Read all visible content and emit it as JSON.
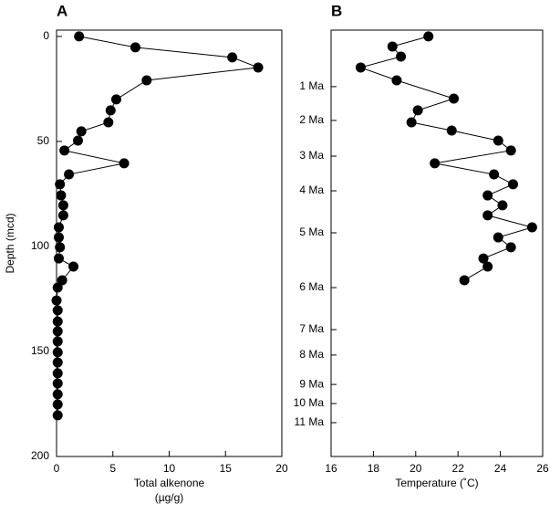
{
  "chart_data": [
    {
      "type": "line",
      "title": "A",
      "xlabel": [
        "Total alkenone",
        "(µg/g)"
      ],
      "ylabel": "Depth (mcd)",
      "color": "#000000",
      "xlim": [
        0,
        20
      ],
      "xticks": [
        0,
        5,
        10,
        15,
        20
      ],
      "ylim": [
        -3,
        200
      ],
      "yticks": [
        0,
        50,
        100,
        150,
        200
      ],
      "y_inverted": true,
      "y": [
        0,
        5.2,
        10,
        14.8,
        20.9,
        30,
        35.2,
        40.9,
        45.2,
        49.6,
        54.3,
        60.4,
        65.7,
        70.4,
        75.7,
        80.4,
        85.2,
        90.9,
        95.7,
        100.4,
        105.7,
        109.6,
        116.1,
        119.6,
        125.7,
        130.4,
        135.7,
        140.4,
        145.2,
        150.4,
        155.2,
        160.4,
        165.2,
        170.4,
        175.2,
        180.4
      ],
      "values": [
        2.0,
        7.0,
        15.6,
        17.9,
        8.0,
        5.3,
        4.8,
        4.6,
        2.2,
        1.9,
        0.7,
        6.0,
        1.1,
        0.3,
        0.4,
        0.6,
        0.6,
        0.2,
        0.2,
        0.3,
        0.2,
        1.5,
        0.5,
        0.1,
        0.0,
        0.1,
        0.1,
        0.1,
        0.1,
        0.1,
        0.1,
        0.1,
        0.1,
        0.1,
        0.1,
        0.1
      ]
    },
    {
      "type": "line",
      "title": "B",
      "xlabel": [
        "Temperature (˚C)"
      ],
      "color": "#000000",
      "xlim": [
        16,
        26
      ],
      "xticks": [
        16,
        18,
        20,
        22,
        24,
        26
      ],
      "ylim": [
        -3,
        200
      ],
      "y_inverted": true,
      "yticks": [
        {
          "value": 23.9,
          "label": "1 Ma"
        },
        {
          "value": 40,
          "label": "2 Ma"
        },
        {
          "value": 57,
          "label": "3 Ma"
        },
        {
          "value": 73.5,
          "label": "4 Ma"
        },
        {
          "value": 93.5,
          "label": "5 Ma"
        },
        {
          "value": 119.6,
          "label": "6 Ma"
        },
        {
          "value": 139.6,
          "label": "7 Ma"
        },
        {
          "value": 151.7,
          "label": "8 Ma"
        },
        {
          "value": 165.7,
          "label": "9 Ma"
        },
        {
          "value": 174.8,
          "label": "10 Ma"
        },
        {
          "value": 183.9,
          "label": "11 Ma"
        }
      ],
      "y": [
        0,
        4.8,
        9.6,
        14.8,
        20.9,
        29.6,
        35.2,
        40.9,
        44.8,
        49.6,
        54.3,
        60.4,
        65.7,
        70.4,
        75.7,
        80.4,
        85.2,
        90.9,
        95.7,
        100.4,
        105.7,
        109.6,
        116.1
      ],
      "values": [
        20.6,
        18.9,
        19.3,
        17.4,
        19.1,
        21.8,
        20.1,
        19.8,
        21.7,
        23.9,
        24.5,
        20.9,
        23.7,
        24.6,
        23.4,
        24.1,
        23.4,
        25.5,
        23.9,
        24.5,
        23.2,
        23.4,
        22.3
      ]
    }
  ]
}
